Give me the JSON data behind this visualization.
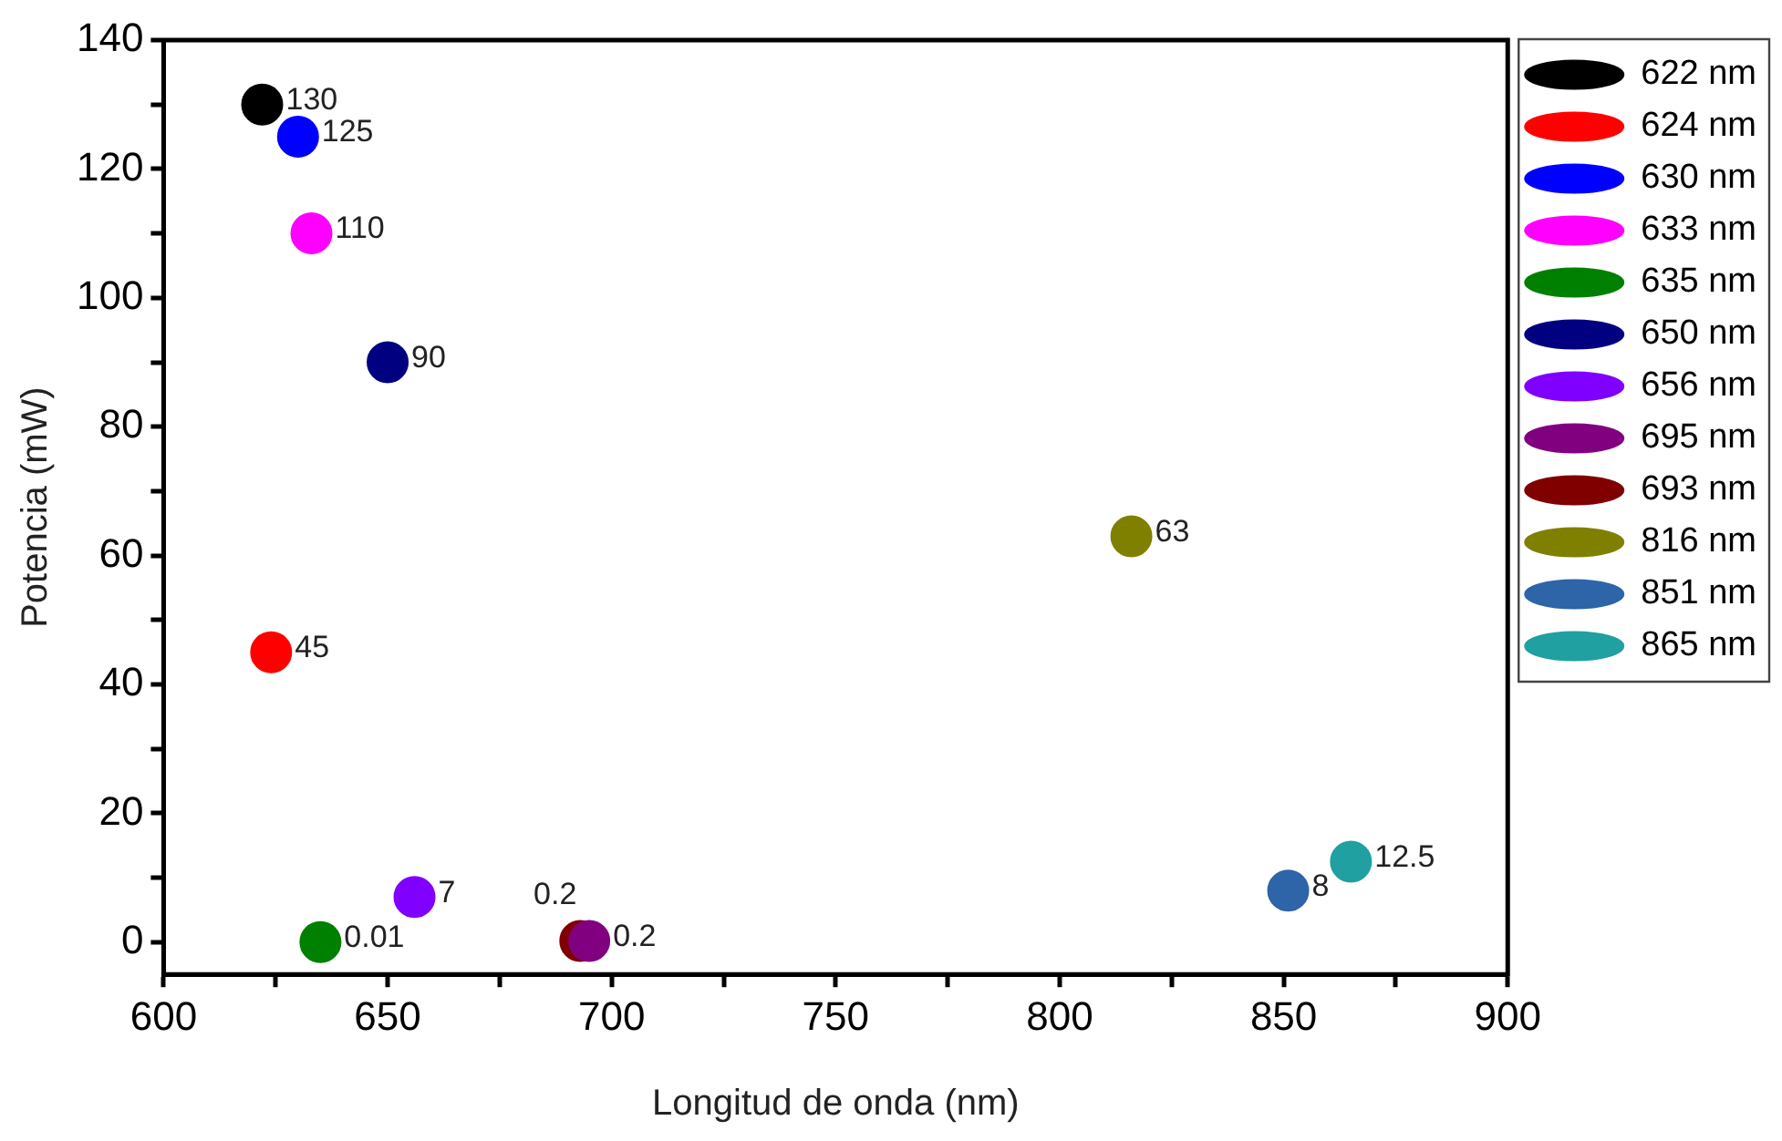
{
  "chart_data": {
    "type": "scatter",
    "xlabel": "Longitud de onda (nm)",
    "ylabel": "Potencia (mW)",
    "xlim": [
      600,
      900
    ],
    "xticks": [
      600,
      {
        "value": 625,
        "label": null
      },
      650,
      {
        "value": 675,
        "label": null
      },
      700,
      {
        "value": 725,
        "label": null
      },
      750,
      {
        "value": 775,
        "label": null
      },
      800,
      {
        "value": 825,
        "label": null
      },
      850,
      {
        "value": 875,
        "label": null
      },
      900
    ],
    "ylim": [
      -5,
      140
    ],
    "yticks": [
      0,
      {
        "value": 10,
        "label": null
      },
      20,
      {
        "value": 30,
        "label": null
      },
      40,
      {
        "value": 50,
        "label": null
      },
      60,
      {
        "value": 70,
        "label": null
      },
      80,
      {
        "value": 90,
        "label": null
      },
      100,
      {
        "value": 110,
        "label": null
      },
      120,
      {
        "value": 130,
        "label": null
      },
      140
    ],
    "grid": false,
    "legend": "right",
    "marker": "circle",
    "data_labels": true,
    "series": [
      {
        "name": "622 nm",
        "color": "#000000",
        "x": [
          622
        ],
        "values": [
          130
        ]
      },
      {
        "name": "624 nm",
        "color": "#ff0000",
        "x": [
          624
        ],
        "values": [
          45
        ]
      },
      {
        "name": "630 nm",
        "color": "#0000ff",
        "x": [
          630
        ],
        "values": [
          125
        ]
      },
      {
        "name": "633 nm",
        "color": "#ff00ff",
        "x": [
          633
        ],
        "values": [
          110
        ]
      },
      {
        "name": "635 nm",
        "color": "#008000",
        "x": [
          635
        ],
        "values": [
          0.01
        ]
      },
      {
        "name": "650 nm",
        "color": "#000080",
        "x": [
          650
        ],
        "values": [
          90
        ]
      },
      {
        "name": "656 nm",
        "color": "#8000ff",
        "x": [
          656
        ],
        "values": [
          7
        ]
      },
      {
        "name": "695 nm",
        "color": "#800080",
        "x": [
          695
        ],
        "values": [
          0.2
        ]
      },
      {
        "name": "693 nm",
        "color": "#800000",
        "x": [
          693
        ],
        "values": [
          0.2
        ]
      },
      {
        "name": "816 nm",
        "color": "#808000",
        "x": [
          816
        ],
        "values": [
          63
        ]
      },
      {
        "name": "851 nm",
        "color": "#2e64a8",
        "x": [
          851
        ],
        "values": [
          8
        ]
      },
      {
        "name": "865 nm",
        "color": "#20a0a0",
        "x": [
          865
        ],
        "values": [
          12.5
        ]
      }
    ]
  }
}
